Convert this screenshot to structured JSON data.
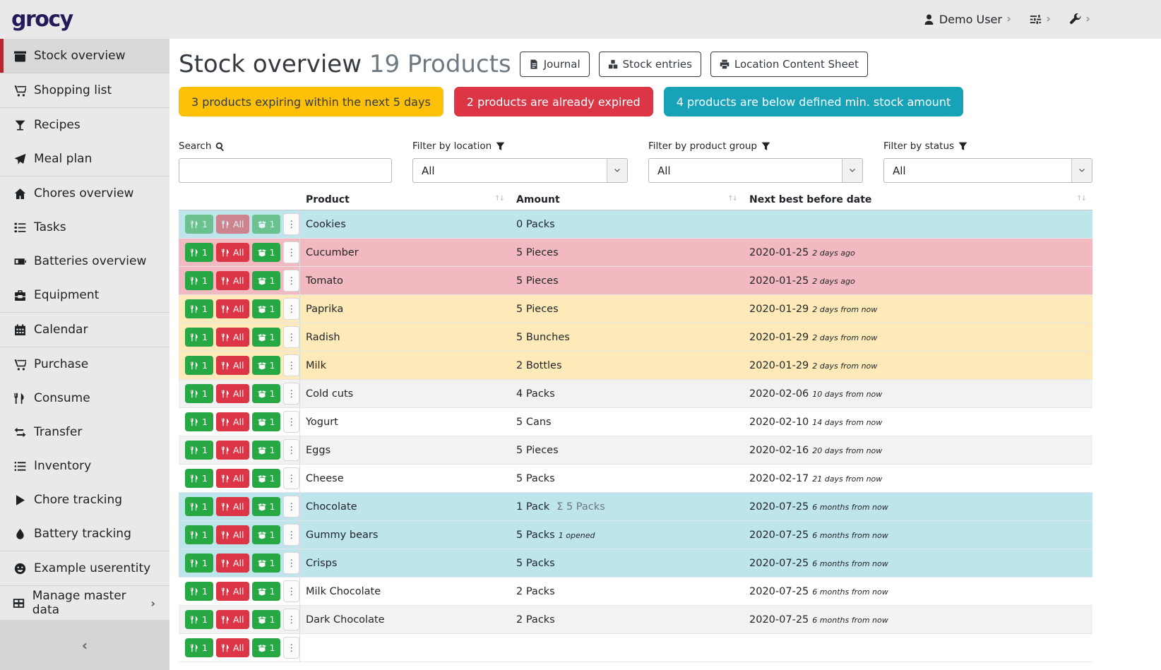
{
  "topbar": {
    "logo": "grocy",
    "user_label": "Demo User",
    "chevron": "›"
  },
  "sidebar": {
    "collapse_icon": "‹",
    "items": [
      {
        "label": "Stock overview",
        "icon": "box",
        "active": true,
        "divider_after": true
      },
      {
        "label": "Shopping list",
        "icon": "cart",
        "divider_after": true
      },
      {
        "label": "Recipes",
        "icon": "cocktail"
      },
      {
        "label": "Meal plan",
        "icon": "plane",
        "divider_after": true
      },
      {
        "label": "Chores overview",
        "icon": "home"
      },
      {
        "label": "Tasks",
        "icon": "tasks"
      },
      {
        "label": "Batteries overview",
        "icon": "battery"
      },
      {
        "label": "Equipment",
        "icon": "toolbox",
        "divider_after": true
      },
      {
        "label": "Calendar",
        "icon": "calendar",
        "divider_after": true
      },
      {
        "label": "Purchase",
        "icon": "cart"
      },
      {
        "label": "Consume",
        "icon": "utensils"
      },
      {
        "label": "Transfer",
        "icon": "exchange"
      },
      {
        "label": "Inventory",
        "icon": "list"
      },
      {
        "label": "Chore tracking",
        "icon": "play"
      },
      {
        "label": "Battery tracking",
        "icon": "drop",
        "divider_after": true
      },
      {
        "label": "Example userentity",
        "icon": "smiley",
        "divider_after": true
      },
      {
        "label": "Manage master data",
        "icon": "table",
        "chevron": "›"
      }
    ]
  },
  "header": {
    "title": "Stock overview",
    "subtitle": "19 Products",
    "buttons": [
      {
        "label": "Journal",
        "icon": "file"
      },
      {
        "label": "Stock entries",
        "icon": "cubes"
      },
      {
        "label": "Location Content Sheet",
        "icon": "print"
      }
    ]
  },
  "alerts": [
    {
      "text": "3 products expiring within the next 5 days",
      "bg": "#ffc107",
      "fg": "#343a40"
    },
    {
      "text": "2 products are already expired",
      "bg": "#dc3545",
      "fg": "#ffffff"
    },
    {
      "text": "4 products are below defined min. stock amount",
      "bg": "#17a2b8",
      "fg": "#ffffff"
    }
  ],
  "filters": {
    "search_label": "Search",
    "search_value": "",
    "location_label": "Filter by location",
    "location_value": "All",
    "product_group_label": "Filter by product group",
    "product_group_value": "All",
    "status_label": "Filter by status",
    "status_value": "All"
  },
  "table": {
    "columns": [
      "Product",
      "Amount",
      "Next best before date"
    ],
    "sort_icon": "↑↓",
    "row_buttons": {
      "consume_one": "1",
      "consume_all": "All",
      "open_one": "1",
      "menu_icon": "⋮",
      "sum_prefix": "Σ"
    },
    "rows": [
      {
        "product": "Cookies",
        "amount": "0 Packs",
        "amount_sum": "",
        "amount_note": "",
        "date": "",
        "date_relative": "",
        "highlight": "info",
        "disabled": true
      },
      {
        "product": "Cucumber",
        "amount": "5 Pieces",
        "amount_sum": "",
        "amount_note": "",
        "date": "2020-01-25",
        "date_relative": "2 days ago",
        "highlight": "danger"
      },
      {
        "product": "Tomato",
        "amount": "5 Pieces",
        "amount_sum": "",
        "amount_note": "",
        "date": "2020-01-25",
        "date_relative": "2 days ago",
        "highlight": "danger"
      },
      {
        "product": "Paprika",
        "amount": "5 Pieces",
        "amount_sum": "",
        "amount_note": "",
        "date": "2020-01-29",
        "date_relative": "2 days from now",
        "highlight": "warning"
      },
      {
        "product": "Radish",
        "amount": "5 Bunches",
        "amount_sum": "",
        "amount_note": "",
        "date": "2020-01-29",
        "date_relative": "2 days from now",
        "highlight": "warning"
      },
      {
        "product": "Milk",
        "amount": "2 Bottles",
        "amount_sum": "",
        "amount_note": "",
        "date": "2020-01-29",
        "date_relative": "2 days from now",
        "highlight": "warning"
      },
      {
        "product": "Cold cuts",
        "amount": "4 Packs",
        "amount_sum": "",
        "amount_note": "",
        "date": "2020-02-06",
        "date_relative": "10 days from now",
        "highlight": "stripe"
      },
      {
        "product": "Yogurt",
        "amount": "5 Cans",
        "amount_sum": "",
        "amount_note": "",
        "date": "2020-02-10",
        "date_relative": "14 days from now",
        "highlight": ""
      },
      {
        "product": "Eggs",
        "amount": "5 Pieces",
        "amount_sum": "",
        "amount_note": "",
        "date": "2020-02-16",
        "date_relative": "20 days from now",
        "highlight": "stripe"
      },
      {
        "product": "Cheese",
        "amount": "5 Packs",
        "amount_sum": "",
        "amount_note": "",
        "date": "2020-02-17",
        "date_relative": "21 days from now",
        "highlight": ""
      },
      {
        "product": "Chocolate",
        "amount": "1 Pack",
        "amount_sum": "5 Packs",
        "amount_note": "",
        "date": "2020-07-25",
        "date_relative": "6 months from now",
        "highlight": "info"
      },
      {
        "product": "Gummy bears",
        "amount": "5 Packs",
        "amount_sum": "",
        "amount_note": "1 opened",
        "date": "2020-07-25",
        "date_relative": "6 months from now",
        "highlight": "info"
      },
      {
        "product": "Crisps",
        "amount": "5 Packs",
        "amount_sum": "",
        "amount_note": "",
        "date": "2020-07-25",
        "date_relative": "6 months from now",
        "highlight": "info"
      },
      {
        "product": "Milk Chocolate",
        "amount": "2 Packs",
        "amount_sum": "",
        "amount_note": "",
        "date": "2020-07-25",
        "date_relative": "6 months from now",
        "highlight": ""
      },
      {
        "product": "Dark Chocolate",
        "amount": "2 Packs",
        "amount_sum": "",
        "amount_note": "",
        "date": "2020-07-25",
        "date_relative": "6 months from now",
        "highlight": "stripe"
      },
      {
        "product": "",
        "amount": "",
        "amount_sum": "",
        "amount_note": "",
        "date": "",
        "date_relative": "",
        "highlight": "",
        "partial": true
      }
    ]
  }
}
